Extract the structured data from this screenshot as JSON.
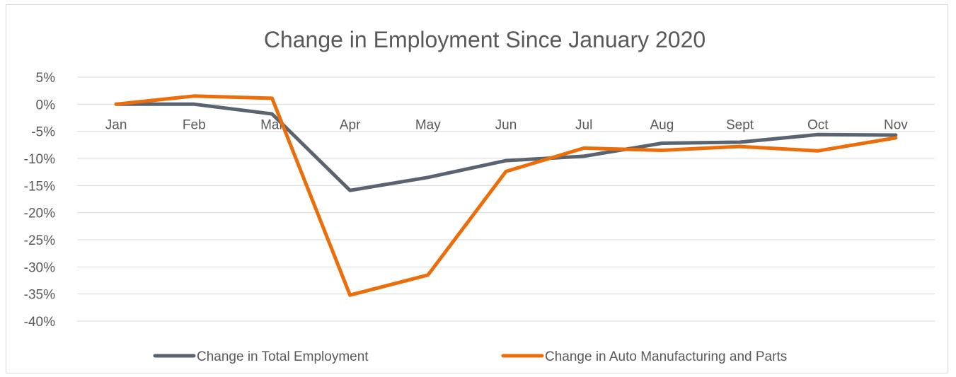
{
  "chart_data": {
    "type": "line",
    "title": "Change in Employment Since January 2020",
    "xlabel": "",
    "ylabel": "",
    "categories": [
      "Jan",
      "Feb",
      "Mar",
      "Apr",
      "May",
      "Jun",
      "Jul",
      "Aug",
      "Sept",
      "Oct",
      "Nov"
    ],
    "y_ticks": [
      "5%",
      "0%",
      "-5%",
      "-10%",
      "-15%",
      "-20%",
      "-25%",
      "-30%",
      "-35%",
      "-40%"
    ],
    "ylim": [
      -40,
      5
    ],
    "y_unit": "%",
    "grid": true,
    "legend_position": "bottom",
    "series": [
      {
        "name": "Change in Total Employment",
        "color": "#5a6470",
        "values": [
          0,
          0,
          -1.8,
          -15.9,
          -13.5,
          -10.4,
          -9.6,
          -7.2,
          -7.0,
          -5.6,
          -5.7
        ]
      },
      {
        "name": "Change in Auto Manufacturing and Parts",
        "color": "#ec6e0a",
        "values": [
          0,
          1.5,
          1.1,
          -35.2,
          -31.5,
          -12.4,
          -8.1,
          -8.5,
          -7.8,
          -8.6,
          -6.2
        ]
      }
    ]
  }
}
